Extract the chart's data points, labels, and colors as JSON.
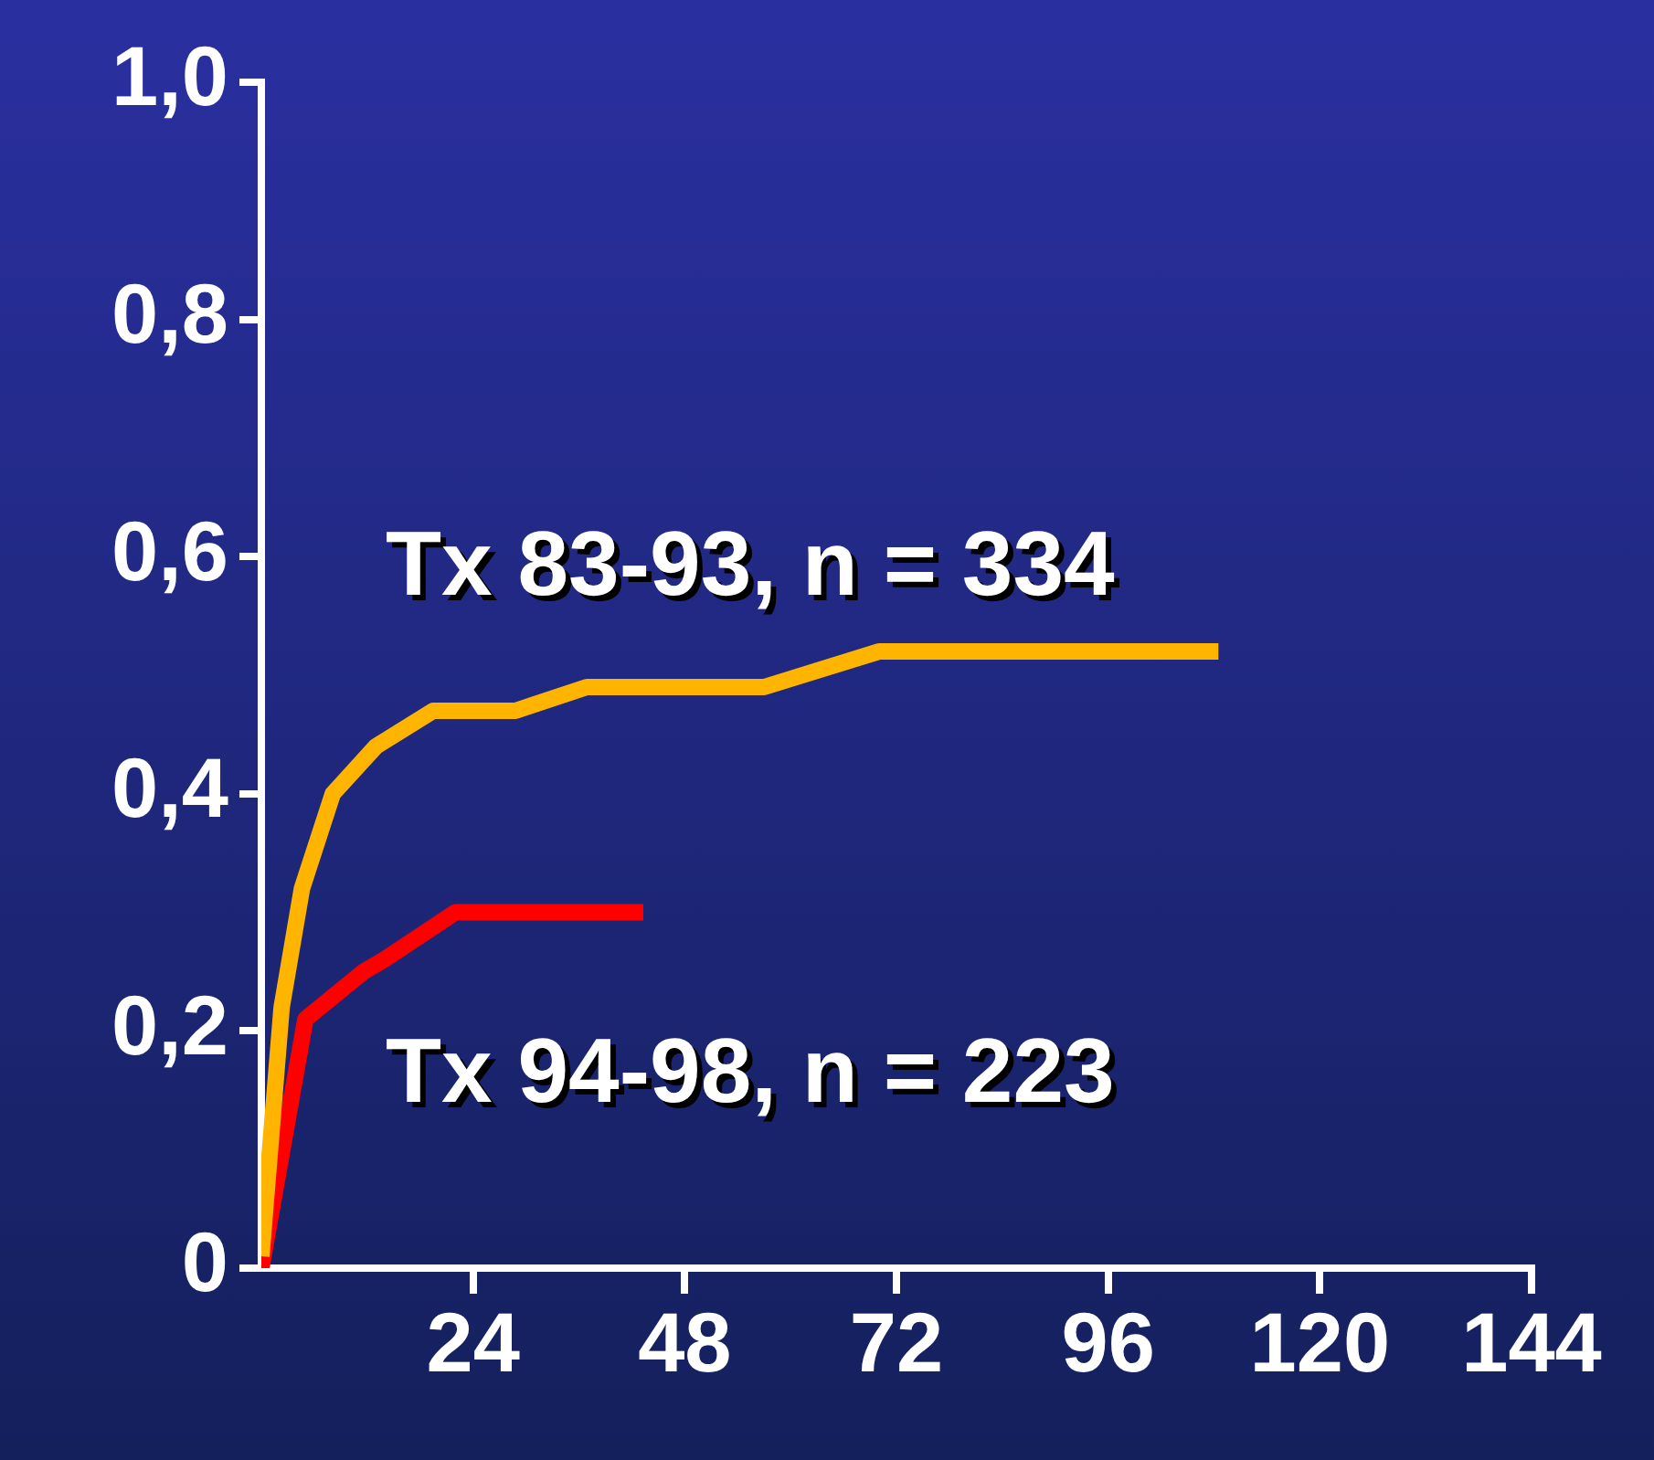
{
  "chart_data": {
    "type": "line",
    "xlim": [
      0,
      144
    ],
    "xticks": [
      24,
      48,
      72,
      96,
      120,
      144
    ],
    "ylim": [
      0,
      1
    ],
    "yticks": [
      {
        "value": 0,
        "label": "0"
      },
      {
        "value": 0.2,
        "label": "0,2"
      },
      {
        "value": 0.4,
        "label": "0,4"
      },
      {
        "value": 0.6,
        "label": "0,6"
      },
      {
        "value": 0.8,
        "label": "0,8"
      },
      {
        "value": 1,
        "label": "1,0"
      }
    ],
    "grid": false,
    "legend": false,
    "marker": "none",
    "line_style": "solid",
    "series": [
      {
        "name": "Tx 83-93, n = 334",
        "color": "#ffb400",
        "x": [
          0,
          2.3,
          4.6,
          8.1,
          13,
          19.5,
          28.8,
          36.9,
          57,
          70,
          108.5
        ],
        "values": [
          0.01,
          0.22,
          0.32,
          0.4,
          0.44,
          0.47,
          0.47,
          0.49,
          0.49,
          0.52,
          0.52
        ]
      },
      {
        "name": "Tx 94-98, n = 223",
        "color": "#ff0000",
        "x": [
          0,
          5,
          11.6,
          13.9,
          22,
          43.3
        ],
        "values": [
          0,
          0.21,
          0.25,
          0.26,
          0.3,
          0.3
        ]
      }
    ]
  }
}
